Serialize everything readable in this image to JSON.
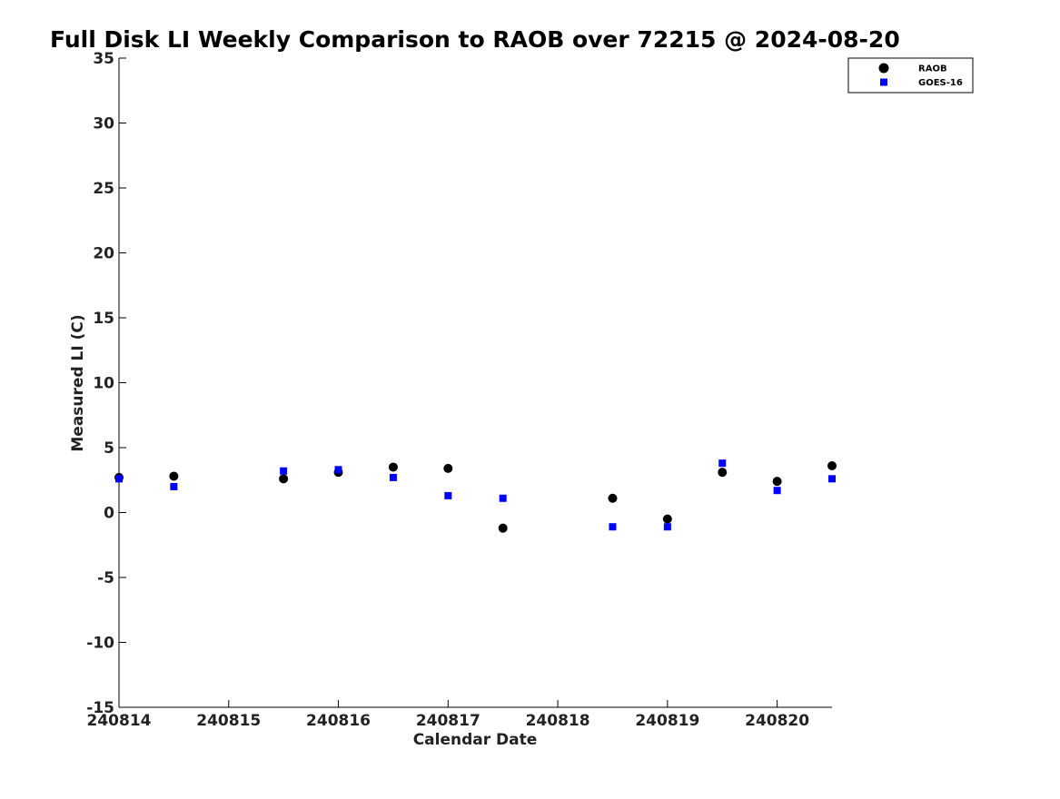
{
  "chart_data": {
    "type": "scatter",
    "title": "Full Disk LI Weekly Comparison to RAOB over 72215 @ 2024-08-20",
    "xlabel": "Calendar Date",
    "ylabel": "Measured LI (C)",
    "xlim": [
      240814,
      240820.5
    ],
    "ylim": [
      -15,
      35
    ],
    "x_ticks": [
      240814,
      240815,
      240816,
      240817,
      240818,
      240819,
      240820
    ],
    "x_tick_labels": [
      "240814",
      "240815",
      "240816",
      "240817",
      "240818",
      "240819",
      "240820"
    ],
    "y_ticks": [
      -15,
      -10,
      -5,
      0,
      5,
      10,
      15,
      20,
      25,
      30,
      35
    ],
    "y_tick_labels": [
      "-15",
      "-10",
      "-5",
      "0",
      "5",
      "10",
      "15",
      "20",
      "25",
      "30",
      "35"
    ],
    "grid": false,
    "legend_position": "top-right",
    "series": [
      {
        "name": "RAOB",
        "marker": "circle",
        "color": "#000000",
        "x": [
          240814,
          240814.5,
          240815.5,
          240816,
          240816.5,
          240817,
          240817.5,
          240818.5,
          240819,
          240819.5,
          240820,
          240820.5
        ],
        "y": [
          2.7,
          2.8,
          2.6,
          3.1,
          3.5,
          3.4,
          -1.2,
          1.1,
          -0.5,
          3.1,
          2.4,
          3.6
        ]
      },
      {
        "name": "GOES-16",
        "marker": "square",
        "color": "#0000ff",
        "x": [
          240814,
          240814.5,
          240815.5,
          240816,
          240816.5,
          240817,
          240817.5,
          240818.5,
          240819,
          240819.5,
          240820,
          240820.5
        ],
        "y": [
          2.6,
          2.0,
          3.2,
          3.3,
          2.7,
          1.3,
          1.1,
          -1.1,
          -1.1,
          3.8,
          1.7,
          2.6
        ]
      }
    ]
  }
}
